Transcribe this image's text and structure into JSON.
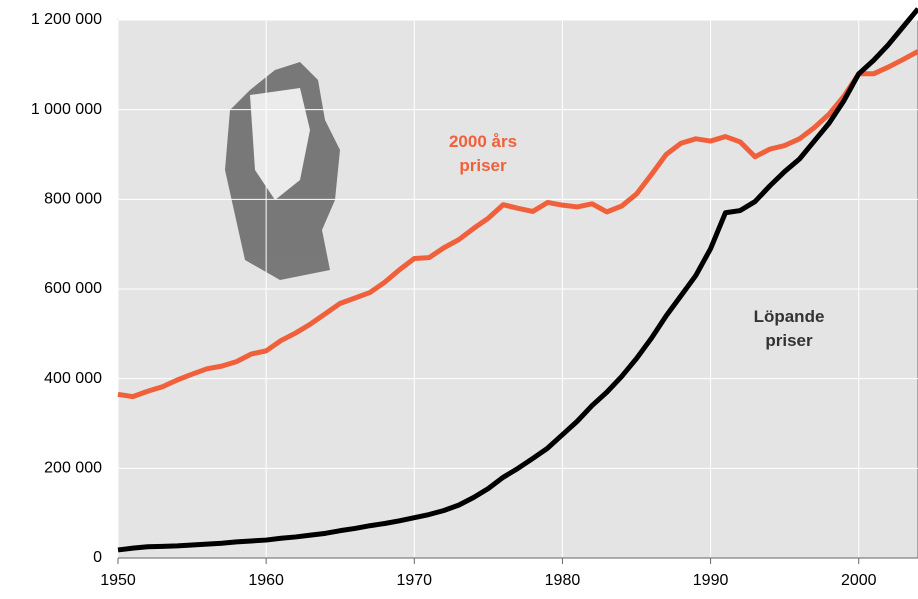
{
  "chart_data": {
    "type": "line",
    "x": [
      1950,
      1951,
      1952,
      1953,
      1954,
      1955,
      1956,
      1957,
      1958,
      1959,
      1960,
      1961,
      1962,
      1963,
      1964,
      1965,
      1966,
      1967,
      1968,
      1969,
      1970,
      1971,
      1972,
      1973,
      1974,
      1975,
      1976,
      1977,
      1978,
      1979,
      1980,
      1981,
      1982,
      1983,
      1984,
      1985,
      1986,
      1987,
      1988,
      1989,
      1990,
      1991,
      1992,
      1993,
      1994,
      1995,
      1996,
      1997,
      1998,
      1999,
      2000,
      2001,
      2002,
      2003,
      2004
    ],
    "series": [
      {
        "color": "#f0603a",
        "values": [
          365000,
          360000,
          372000,
          382000,
          397000,
          410000,
          422000,
          428000,
          438000,
          455000,
          462000,
          485000,
          502000,
          522000,
          545000,
          568000,
          580000,
          592000,
          615000,
          643000,
          668000,
          670000,
          692000,
          710000,
          735000,
          758000,
          788000,
          780000,
          773000,
          793000,
          787000,
          783000,
          790000,
          772000,
          785000,
          812000,
          855000,
          900000,
          925000,
          935000,
          930000,
          940000,
          928000,
          895000,
          912000,
          920000,
          935000,
          960000,
          990000,
          1030000,
          1080000,
          1080000,
          1095000,
          1112000,
          1130000
        ]
      },
      {
        "color": "#000000",
        "values": [
          18000,
          22000,
          25000,
          26000,
          27000,
          29000,
          31000,
          33000,
          36000,
          38000,
          40000,
          44000,
          47000,
          51000,
          55000,
          61000,
          66000,
          72000,
          77000,
          83000,
          90000,
          97000,
          106000,
          118000,
          135000,
          155000,
          180000,
          200000,
          222000,
          245000,
          275000,
          305000,
          340000,
          370000,
          405000,
          445000,
          490000,
          540000,
          585000,
          630000,
          690000,
          770000,
          775000,
          795000,
          830000,
          862000,
          890000,
          930000,
          970000,
          1020000,
          1080000,
          1110000,
          1145000,
          1185000,
          1225000
        ]
      }
    ],
    "annotations": [
      {
        "lines": [
          "2000 års",
          "priser"
        ],
        "color": "#f0603a"
      },
      {
        "lines": [
          "Löpande",
          "priser"
        ],
        "color": "#333333"
      }
    ],
    "xlim": [
      1950,
      2004
    ],
    "xticks": [
      1950,
      1960,
      1970,
      1980,
      1990,
      2000
    ],
    "ylim": [
      0,
      1200000
    ],
    "yticks": [
      0,
      {
        "value": 200000,
        "label": "200 000"
      },
      {
        "value": 400000,
        "label": "400 000"
      },
      {
        "value": 600000,
        "label": "600 000"
      },
      {
        "value": 800000,
        "label": "800 000"
      },
      {
        "value": 1000000,
        "label": "1 000 000"
      },
      {
        "value": 1200000,
        "label": "1 200 000"
      }
    ],
    "grid": true
  }
}
